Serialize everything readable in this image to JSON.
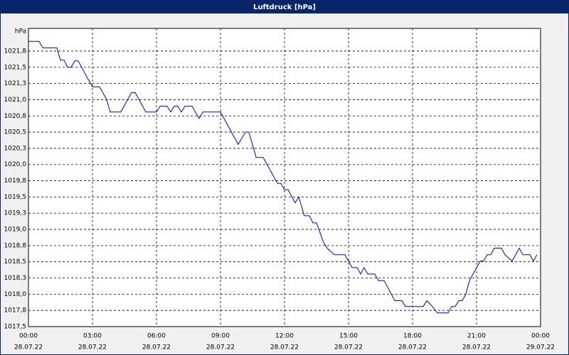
{
  "window_title": "Luftdruck [hPa]",
  "chart_data": {
    "type": "line",
    "y_unit": "hPa",
    "color": "#0000c8",
    "grid": true,
    "xlim": [
      0,
      24
    ],
    "ylim": [
      1017.5,
      1022.1
    ],
    "xticks": [
      {
        "value": 0,
        "label": "00:00"
      },
      {
        "value": 3,
        "label": "03:00"
      },
      {
        "value": 6,
        "label": "06:00"
      },
      {
        "value": 9,
        "label": "09:00"
      },
      {
        "value": 12,
        "label": "12:00"
      },
      {
        "value": 15,
        "label": "15:00"
      },
      {
        "value": 18,
        "label": "18:00"
      },
      {
        "value": 21,
        "label": "21:00"
      },
      {
        "value": 24,
        "label": "00:00"
      }
    ],
    "xtick_dates": [
      "28.07.22",
      "28.07.22",
      "28.07.22",
      "28.07.22",
      "28.07.22",
      "28.07.22",
      "28.07.22",
      "28.07.22",
      "29.07.22"
    ],
    "yticks": [
      {
        "value": 1017.5,
        "label": "1017,5"
      },
      {
        "value": 1017.75,
        "label": "1017,8"
      },
      {
        "value": 1018.0,
        "label": "1018,0"
      },
      {
        "value": 1018.25,
        "label": "1018,3"
      },
      {
        "value": 1018.5,
        "label": "1018,5"
      },
      {
        "value": 1018.75,
        "label": "1018,8"
      },
      {
        "value": 1019.0,
        "label": "1019,0"
      },
      {
        "value": 1019.25,
        "label": "1019,3"
      },
      {
        "value": 1019.5,
        "label": "1019,5"
      },
      {
        "value": 1019.75,
        "label": "1019,8"
      },
      {
        "value": 1020.0,
        "label": "1020,0"
      },
      {
        "value": 1020.25,
        "label": "1020,3"
      },
      {
        "value": 1020.5,
        "label": "1020,5"
      },
      {
        "value": 1020.75,
        "label": "1020,8"
      },
      {
        "value": 1021.0,
        "label": "1021,0"
      },
      {
        "value": 1021.25,
        "label": "1021,3"
      },
      {
        "value": 1021.5,
        "label": "1021,5"
      },
      {
        "value": 1021.75,
        "label": "1021,8"
      }
    ],
    "x": [
      0,
      0.5,
      0.67,
      1.33,
      1.5,
      1.67,
      1.83,
      2.0,
      2.17,
      2.33,
      2.67,
      3.0,
      3.33,
      3.67,
      3.83,
      4.33,
      4.83,
      5.0,
      5.5,
      6.0,
      6.17,
      6.5,
      6.67,
      6.83,
      7.0,
      7.17,
      7.33,
      7.67,
      8.0,
      8.17,
      9.0,
      9.83,
      10.17,
      10.33,
      10.67,
      11.0,
      11.67,
      11.83,
      12.0,
      12.17,
      12.5,
      12.67,
      12.93,
      13.17,
      13.33,
      13.5,
      13.83,
      14.0,
      14.33,
      14.83,
      15.17,
      15.4,
      15.57,
      15.73,
      15.9,
      16.23,
      16.4,
      16.67,
      17.17,
      17.5,
      17.67,
      18.5,
      18.67,
      18.93,
      19.17,
      19.67,
      19.83,
      20.0,
      20.17,
      20.33,
      20.5,
      20.67,
      21.17,
      21.33,
      21.5,
      21.67,
      21.83,
      22.17,
      22.33,
      22.67,
      23.0,
      23.17,
      23.5,
      23.67,
      23.83
    ],
    "values": [
      1021.9,
      1021.9,
      1021.8,
      1021.8,
      1021.61,
      1021.61,
      1021.5,
      1021.5,
      1021.6,
      1021.6,
      1021.39,
      1021.2,
      1021.2,
      1021.0,
      1020.81,
      1020.81,
      1021.11,
      1021.11,
      1020.81,
      1020.81,
      1020.9,
      1020.9,
      1020.81,
      1020.9,
      1020.9,
      1020.81,
      1020.9,
      1020.9,
      1020.71,
      1020.81,
      1020.81,
      1020.31,
      1020.5,
      1020.5,
      1020.11,
      1020.11,
      1019.71,
      1019.71,
      1019.61,
      1019.61,
      1019.41,
      1019.5,
      1019.21,
      1019.21,
      1019.1,
      1019.1,
      1018.8,
      1018.71,
      1018.61,
      1018.61,
      1018.41,
      1018.41,
      1018.31,
      1018.41,
      1018.31,
      1018.31,
      1018.21,
      1018.21,
      1017.9,
      1017.9,
      1017.81,
      1017.81,
      1017.9,
      1017.81,
      1017.71,
      1017.71,
      1017.81,
      1017.81,
      1017.9,
      1017.9,
      1018.0,
      1018.21,
      1018.51,
      1018.51,
      1018.61,
      1018.61,
      1018.71,
      1018.71,
      1018.61,
      1018.51,
      1018.71,
      1018.61,
      1018.61,
      1018.51,
      1018.61
    ]
  }
}
